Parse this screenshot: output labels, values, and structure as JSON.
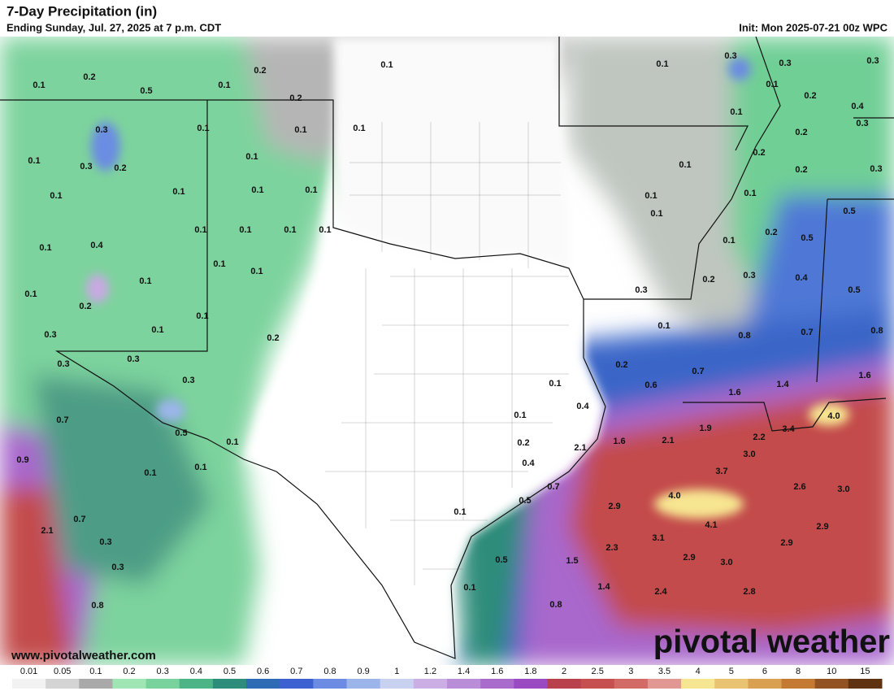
{
  "header": {
    "title": "7-Day Precipitation (in)",
    "subtitle": "Ending Sunday, Jul. 27, 2025 at 7 p.m. CDT",
    "init": "Init: Mon 2025-07-21 00z WPC"
  },
  "map_labels": [
    "0.1",
    "0.2",
    "0.5",
    "0.1",
    "0.2",
    "0.2",
    "0.1",
    "0.3",
    "0.1",
    "0.1",
    "0.1",
    "0.1",
    "0.3",
    "0.2",
    "0.1",
    "0.1",
    "0.1",
    "0.1",
    "0.1",
    "0.1",
    "0.4",
    "0.1",
    "0.1",
    "0.1",
    "0.1",
    "0.1",
    "0.1",
    "0.1",
    "0.1",
    "0.2",
    "0.1",
    "0.1",
    "0.3",
    "0.2",
    "0.3",
    "0.3",
    "0.3",
    "0.7",
    "0.5",
    "0.1",
    "0.9",
    "0.1",
    "0.1",
    "2.1",
    "0.7",
    "0.3",
    "0.3",
    "0.8",
    "0.1",
    "0.3",
    "0.3",
    "0.3",
    "0.1",
    "0.2",
    "0.4",
    "0.1",
    "0.3",
    "0.2",
    "0.2",
    "0.1",
    "0.2",
    "0.3",
    "0.1",
    "0.1",
    "0.1",
    "0.5",
    "0.2",
    "0.5",
    "0.1",
    "0.3",
    "0.4",
    "0.2",
    "0.3",
    "0.5",
    "0.1",
    "0.8",
    "0.7",
    "0.8",
    "0.2",
    "0.7",
    "1.4",
    "1.6",
    "0.1",
    "0.6",
    "1.6",
    "0.4",
    "0.1",
    "1.9",
    "4.0",
    "3.4",
    "2.2",
    "0.2",
    "2.1",
    "1.6",
    "2.1",
    "3.0",
    "0.4",
    "0.7",
    "3.7",
    "0.5",
    "4.0",
    "2.6",
    "3.0",
    "2.9",
    "0.1",
    "4.1",
    "2.9",
    "3.1",
    "2.9",
    "2.3",
    "0.5",
    "1.5",
    "2.9",
    "3.0",
    "1.4",
    "0.1",
    "2.4",
    "2.8",
    "0.8"
  ],
  "legend": [
    {
      "label": "0.01",
      "color": "#f2f2f2"
    },
    {
      "label": "0.05",
      "color": "#d4d4d4"
    },
    {
      "label": "0.1",
      "color": "#a9a9a9"
    },
    {
      "label": "0.2",
      "color": "#9fe6b4"
    },
    {
      "label": "0.3",
      "color": "#78d29c"
    },
    {
      "label": "0.4",
      "color": "#4db487"
    },
    {
      "label": "0.5",
      "color": "#2e8c7a"
    },
    {
      "label": "0.6",
      "color": "#2d6cb4"
    },
    {
      "label": "0.7",
      "color": "#3d61d0"
    },
    {
      "label": "0.8",
      "color": "#6b8ce2"
    },
    {
      "label": "0.9",
      "color": "#9bb5ea"
    },
    {
      "label": "1",
      "color": "#c9d1f1"
    },
    {
      "label": "1.2",
      "color": "#cbaee3"
    },
    {
      "label": "1.4",
      "color": "#ba8dd9"
    },
    {
      "label": "1.6",
      "color": "#a96ccd"
    },
    {
      "label": "1.8",
      "color": "#9a4bc2"
    },
    {
      "label": "2",
      "color": "#b8404c"
    },
    {
      "label": "2.5",
      "color": "#c65050"
    },
    {
      "label": "3",
      "color": "#d26a66"
    },
    {
      "label": "3.5",
      "color": "#e19792"
    },
    {
      "label": "4",
      "color": "#f7e691"
    },
    {
      "label": "5",
      "color": "#eac372"
    },
    {
      "label": "6",
      "color": "#d9a052"
    },
    {
      "label": "8",
      "color": "#c47a32"
    },
    {
      "label": "10",
      "color": "#925222"
    },
    {
      "label": "15",
      "color": "#5f3212"
    }
  ],
  "footer": {
    "website": "www.pivotalweather.com",
    "logo": "pivotal weather"
  }
}
